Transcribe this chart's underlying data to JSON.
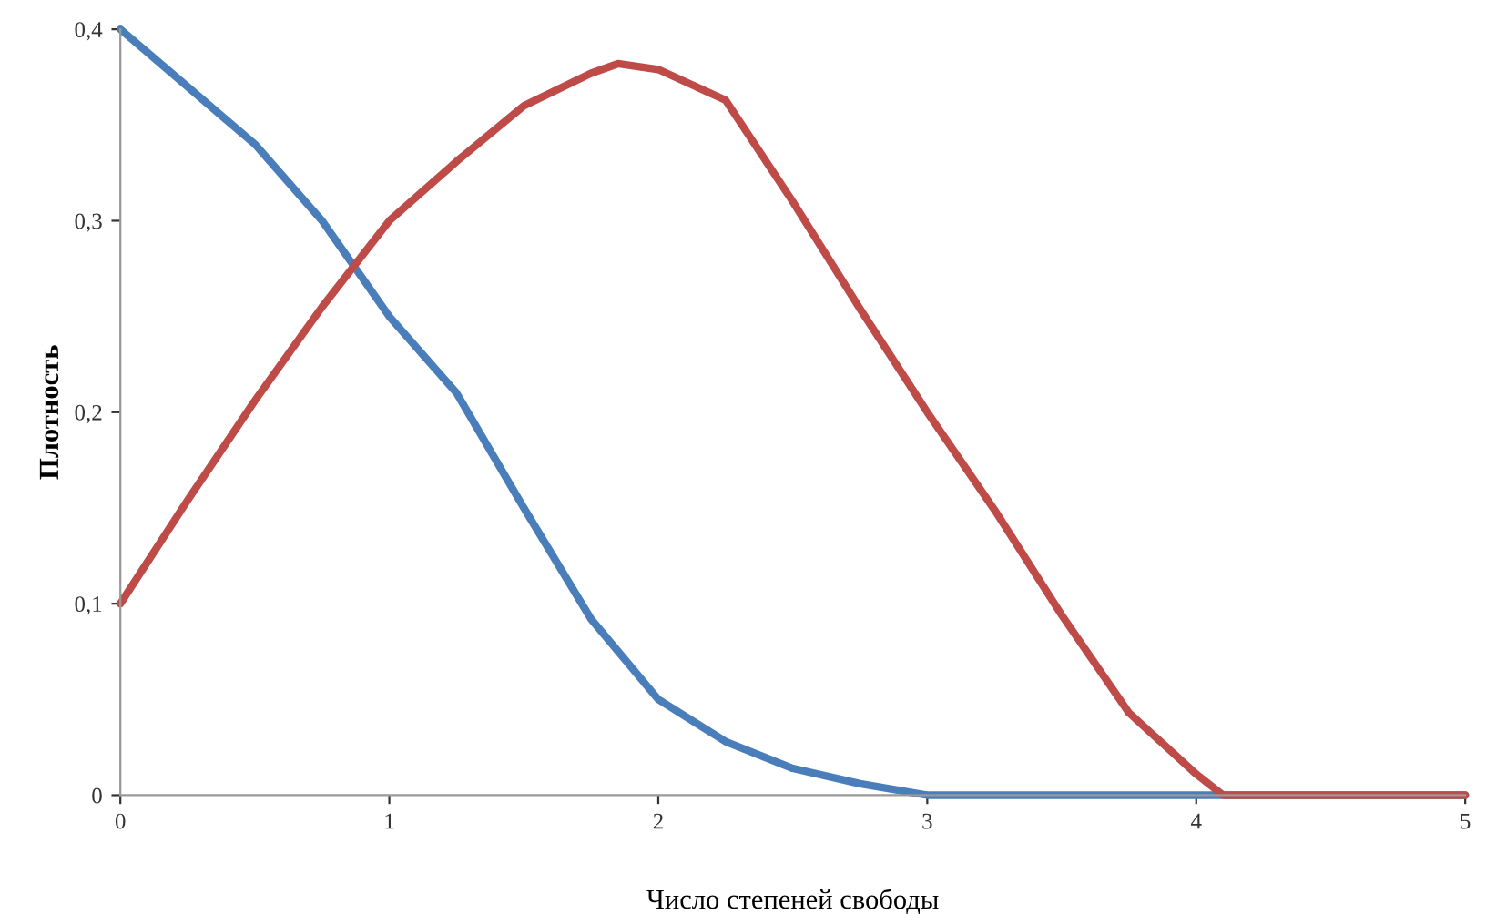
{
  "chart_data": {
    "type": "line",
    "xlabel": "Число степеней свободы",
    "ylabel": "Плотность",
    "xlim": [
      0,
      5
    ],
    "ylim": [
      0,
      0.4
    ],
    "xticks": [
      0,
      1,
      2,
      3,
      4,
      5
    ],
    "yticks": [
      0,
      {
        "value": 0.1,
        "label": "0,1"
      },
      {
        "value": 0.2,
        "label": "0,2"
      },
      {
        "value": 0.3,
        "label": "0,3"
      },
      {
        "value": 0.4,
        "label": "0,4"
      }
    ],
    "grid": false,
    "legend": false,
    "marker": "none",
    "line_style": "solid",
    "series": [
      {
        "color": "#4a7ebb",
        "x": [
          0,
          0.25,
          0.5,
          0.75,
          1,
          1.25,
          1.5,
          1.75,
          2,
          2.25,
          2.5,
          2.75,
          3,
          4,
          5
        ],
        "values": [
          0.4,
          0.37,
          0.34,
          0.3,
          0.25,
          0.21,
          0.15,
          0.092,
          0.05,
          0.028,
          0.014,
          0.006,
          0,
          0,
          0
        ]
      },
      {
        "color": "#be4b48",
        "x": [
          0,
          0.25,
          0.5,
          0.75,
          1,
          1.25,
          1.5,
          1.75,
          1.85,
          2,
          2.25,
          2.5,
          2.75,
          3,
          3.25,
          3.5,
          3.75,
          4,
          4.1,
          5
        ],
        "values": [
          0.1,
          0.154,
          0.206,
          0.255,
          0.3,
          0.331,
          0.36,
          0.377,
          0.382,
          0.379,
          0.363,
          0.31,
          0.254,
          0.2,
          0.149,
          0.094,
          0.043,
          0.011,
          0,
          0
        ]
      }
    ]
  }
}
